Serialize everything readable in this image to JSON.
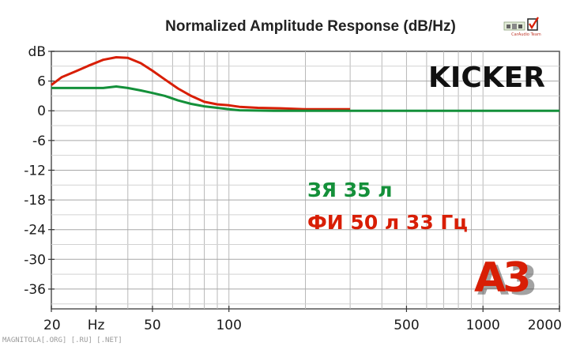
{
  "chart_data": {
    "type": "line",
    "title": "Normalized Amplitude Response (dB/Hz)",
    "brand": "KICKER",
    "x_scale": "log",
    "xlim": [
      20,
      2000
    ],
    "ylim": [
      -40,
      12
    ],
    "y_ticks": [
      {
        "value": 12,
        "label": "dB"
      },
      {
        "value": 6,
        "label": "6"
      },
      {
        "value": 0,
        "label": "0"
      },
      {
        "value": -6,
        "label": "-6"
      },
      {
        "value": -12,
        "label": "-12"
      },
      {
        "value": -18,
        "label": "-18"
      },
      {
        "value": -24,
        "label": "-24"
      },
      {
        "value": -30,
        "label": "-30"
      },
      {
        "value": -36,
        "label": "-36"
      }
    ],
    "x_ticks": [
      {
        "value": 20,
        "label": "20"
      },
      {
        "value": 30,
        "label": "Hz"
      },
      {
        "value": 50,
        "label": "50"
      },
      {
        "value": 100,
        "label": "100"
      },
      {
        "value": 500,
        "label": "500"
      },
      {
        "value": 1000,
        "label": "1000"
      },
      {
        "value": 2000,
        "label": "2000"
      }
    ],
    "grid": true,
    "series": [
      {
        "name": "ФИ 50 л 33 Гц",
        "color": "#d81e05",
        "x": [
          20,
          22,
          25,
          28,
          32,
          36,
          40,
          45,
          50,
          56,
          63,
          71,
          80,
          90,
          100,
          110,
          130,
          160,
          200,
          300
        ],
        "y": [
          5.2,
          6.8,
          8.0,
          9.1,
          10.3,
          10.8,
          10.7,
          9.6,
          8.1,
          6.3,
          4.5,
          3.0,
          1.8,
          1.3,
          1.1,
          0.8,
          0.6,
          0.5,
          0.3,
          0.3
        ]
      },
      {
        "name": "ЗЯ 35 л",
        "color": "#14903a",
        "x": [
          20,
          25,
          32,
          36,
          40,
          45,
          50,
          56,
          63,
          71,
          80,
          90,
          100,
          110,
          150,
          300,
          500,
          1000,
          2000
        ],
        "y": [
          4.6,
          4.6,
          4.6,
          4.9,
          4.6,
          4.1,
          3.6,
          3.0,
          2.1,
          1.4,
          0.9,
          0.6,
          0.3,
          0.1,
          0.0,
          0.0,
          0.0,
          0.0,
          0.0
        ]
      }
    ],
    "annotations": [
      {
        "text": "ЗЯ 35 л",
        "color": "#14903a"
      },
      {
        "text": "ФИ 50 л 33 Гц",
        "color": "#d81e05"
      }
    ]
  },
  "badge": {
    "text": "A3",
    "color": "#d81e05"
  },
  "logo": {
    "caption": "CarAudio Team"
  },
  "watermark": "MAGNITOLA[.ORG] [.RU] [.NET]"
}
